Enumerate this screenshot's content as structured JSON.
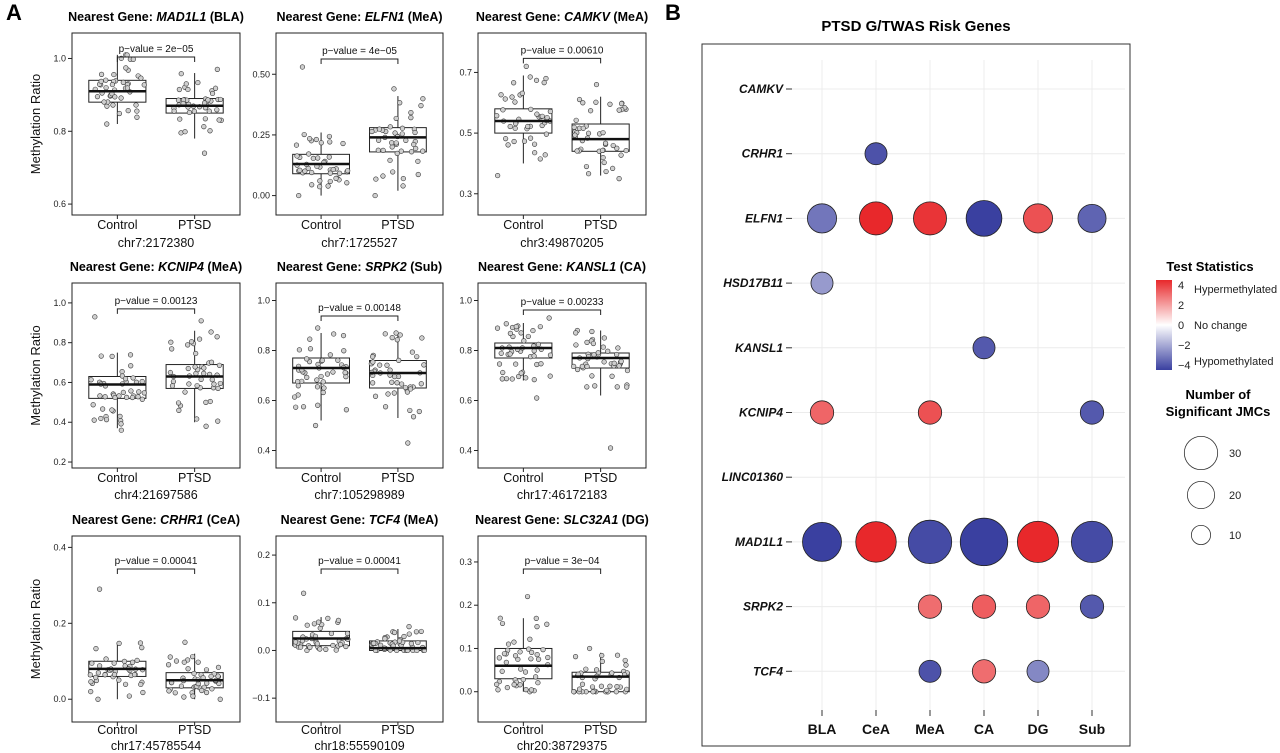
{
  "panel_a_label": "A",
  "panel_b_label": "B",
  "y_axis_label": "Methylation Ratio",
  "title_prefix": "Nearest Gene:",
  "chart_data": [
    {
      "type": "box",
      "gene": "MAD1L1",
      "region": "(BLA)",
      "categories": [
        "Control",
        "PTSD"
      ],
      "xlabel": "chr7:2172380",
      "ylabel": "Methylation Ratio",
      "pvalue": "p−value = 2e−05",
      "ylim": [
        0.57,
        1.07
      ],
      "yticks": [
        0.6,
        0.8,
        1.0
      ],
      "yticklabels": [
        "0.6",
        "0.8",
        "1.0"
      ],
      "boxes": [
        {
          "q1": 0.88,
          "median": 0.91,
          "q3": 0.94,
          "lower": 0.82,
          "upper": 1.01,
          "n": 45,
          "min": 0.82,
          "max": 1.01
        },
        {
          "q1": 0.85,
          "median": 0.87,
          "q3": 0.89,
          "lower": 0.78,
          "upper": 0.96,
          "n": 45,
          "min": 0.74,
          "max": 0.97
        }
      ]
    },
    {
      "type": "box",
      "gene": "ELFN1",
      "region": "(MeA)",
      "categories": [
        "Control",
        "PTSD"
      ],
      "xlabel": "chr7:1725527",
      "ylabel": "",
      "pvalue": "p−value = 4e−05",
      "ylim": [
        -0.08,
        0.67
      ],
      "yticks": [
        0.0,
        0.25,
        0.5
      ],
      "yticklabels": [
        "0.00",
        "0.25",
        "0.50"
      ],
      "boxes": [
        {
          "q1": 0.09,
          "median": 0.13,
          "q3": 0.17,
          "lower": 0.0,
          "upper": 0.26,
          "n": 45,
          "min": 0.0,
          "max": 0.53
        },
        {
          "q1": 0.18,
          "median": 0.24,
          "q3": 0.28,
          "lower": 0.02,
          "upper": 0.41,
          "n": 45,
          "min": 0.0,
          "max": 0.44
        }
      ]
    },
    {
      "type": "box",
      "gene": "CAMKV",
      "region": "(MeA)",
      "categories": [
        "Control",
        "PTSD"
      ],
      "xlabel": "chr3:49870205",
      "ylabel": "",
      "pvalue": "p−value = 0.00610",
      "ylim": [
        0.23,
        0.83
      ],
      "yticks": [
        0.3,
        0.5,
        0.7
      ],
      "yticklabels": [
        "0.3",
        "0.5",
        "0.7"
      ],
      "boxes": [
        {
          "q1": 0.5,
          "median": 0.54,
          "q3": 0.58,
          "lower": 0.4,
          "upper": 0.69,
          "n": 45,
          "min": 0.36,
          "max": 0.72
        },
        {
          "q1": 0.44,
          "median": 0.48,
          "q3": 0.53,
          "lower": 0.36,
          "upper": 0.62,
          "n": 45,
          "min": 0.35,
          "max": 0.66
        }
      ]
    },
    {
      "type": "box",
      "gene": "KCNIP4",
      "region": "(MeA)",
      "categories": [
        "Control",
        "PTSD"
      ],
      "xlabel": "chr4:21697586",
      "ylabel": "Methylation Ratio",
      "pvalue": "p−value = 0.00123",
      "ylim": [
        0.17,
        1.1
      ],
      "yticks": [
        0.2,
        0.4,
        0.6,
        0.8,
        1.0
      ],
      "yticklabels": [
        "0.2",
        "0.4",
        "0.6",
        "0.8",
        "1.0"
      ],
      "boxes": [
        {
          "q1": 0.52,
          "median": 0.59,
          "q3": 0.63,
          "lower": 0.37,
          "upper": 0.75,
          "n": 45,
          "min": 0.36,
          "max": 0.93
        },
        {
          "q1": 0.57,
          "median": 0.63,
          "q3": 0.69,
          "lower": 0.4,
          "upper": 0.86,
          "n": 45,
          "min": 0.38,
          "max": 0.91
        }
      ]
    },
    {
      "type": "box",
      "gene": "SRPK2",
      "region": "(Sub)",
      "categories": [
        "Control",
        "PTSD"
      ],
      "xlabel": "chr7:105298989",
      "ylabel": "",
      "pvalue": "p−value = 0.00148",
      "ylim": [
        0.33,
        1.07
      ],
      "yticks": [
        0.4,
        0.6,
        0.8,
        1.0
      ],
      "yticklabels": [
        "0.4",
        "0.6",
        "0.8",
        "1.0"
      ],
      "boxes": [
        {
          "q1": 0.67,
          "median": 0.73,
          "q3": 0.77,
          "lower": 0.52,
          "upper": 0.87,
          "n": 45,
          "min": 0.5,
          "max": 0.89
        },
        {
          "q1": 0.65,
          "median": 0.71,
          "q3": 0.76,
          "lower": 0.53,
          "upper": 0.87,
          "n": 45,
          "min": 0.43,
          "max": 0.87
        }
      ]
    },
    {
      "type": "box",
      "gene": "KANSL1",
      "region": "(CA)",
      "categories": [
        "Control",
        "PTSD"
      ],
      "xlabel": "chr17:46172183",
      "ylabel": "",
      "pvalue": "p−value = 0.00233",
      "ylim": [
        0.33,
        1.07
      ],
      "yticks": [
        0.4,
        0.6,
        0.8,
        1.0
      ],
      "yticklabels": [
        "0.4",
        "0.6",
        "0.8",
        "1.0"
      ],
      "boxes": [
        {
          "q1": 0.77,
          "median": 0.81,
          "q3": 0.83,
          "lower": 0.68,
          "upper": 0.91,
          "n": 45,
          "min": 0.61,
          "max": 0.93
        },
        {
          "q1": 0.73,
          "median": 0.77,
          "q3": 0.79,
          "lower": 0.62,
          "upper": 0.88,
          "n": 45,
          "min": 0.41,
          "max": 0.88
        }
      ]
    },
    {
      "type": "box",
      "gene": "CRHR1",
      "region": "(CeA)",
      "categories": [
        "Control",
        "PTSD"
      ],
      "xlabel": "chr17:45785544",
      "ylabel": "Methylation Ratio",
      "pvalue": "p−value = 0.00041",
      "ylim": [
        -0.06,
        0.43
      ],
      "yticks": [
        0.0,
        0.2,
        0.4
      ],
      "yticklabels": [
        "0.0",
        "0.2",
        "0.4"
      ],
      "boxes": [
        {
          "q1": 0.06,
          "median": 0.08,
          "q3": 0.1,
          "lower": 0.0,
          "upper": 0.15,
          "n": 45,
          "min": 0.0,
          "max": 0.29
        },
        {
          "q1": 0.03,
          "median": 0.05,
          "q3": 0.07,
          "lower": 0.0,
          "upper": 0.12,
          "n": 45,
          "min": 0.0,
          "max": 0.15
        }
      ]
    },
    {
      "type": "box",
      "gene": "TCF4",
      "region": "(MeA)",
      "categories": [
        "Control",
        "PTSD"
      ],
      "xlabel": "chr18:55590109",
      "ylabel": "",
      "pvalue": "p−value = 0.00041",
      "ylim": [
        -0.15,
        0.24
      ],
      "yticks": [
        -0.1,
        0.0,
        0.1,
        0.2
      ],
      "yticklabels": [
        "−0.1",
        "0.0",
        "0.1",
        "0.2"
      ],
      "boxes": [
        {
          "q1": 0.01,
          "median": 0.025,
          "q3": 0.04,
          "lower": 0.0,
          "upper": 0.07,
          "n": 45,
          "min": 0.0,
          "max": 0.12
        },
        {
          "q1": 0.0,
          "median": 0.005,
          "q3": 0.02,
          "lower": 0.0,
          "upper": 0.045,
          "n": 45,
          "min": 0.0,
          "max": 0.05
        }
      ]
    },
    {
      "type": "box",
      "gene": "SLC32A1",
      "region": "(DG)",
      "categories": [
        "Control",
        "PTSD"
      ],
      "xlabel": "chr20:38729375",
      "ylabel": "",
      "pvalue": "p−value = 3e−04",
      "ylim": [
        -0.07,
        0.36
      ],
      "yticks": [
        0.0,
        0.1,
        0.2,
        0.3
      ],
      "yticklabels": [
        "0.0",
        "0.1",
        "0.2",
        "0.3"
      ],
      "boxes": [
        {
          "q1": 0.03,
          "median": 0.06,
          "q3": 0.1,
          "lower": 0.0,
          "upper": 0.17,
          "n": 45,
          "min": 0.0,
          "max": 0.22
        },
        {
          "q1": 0.0,
          "median": 0.035,
          "q3": 0.045,
          "lower": 0.0,
          "upper": 0.09,
          "n": 45,
          "min": 0.0,
          "max": 0.1
        }
      ]
    },
    {
      "type": "scatter",
      "subtype": "bubble",
      "title": "PTSD G/TWAS Risk Genes",
      "categories": [
        "BLA",
        "CeA",
        "MeA",
        "CA",
        "DG",
        "Sub"
      ],
      "genes": [
        "CAMKV",
        "CRHR1",
        "ELFN1",
        "HSD17B11",
        "KANSL1",
        "KCNIP4",
        "LINC01360",
        "MAD1L1",
        "SRPK2",
        "TCF4"
      ],
      "points": [
        {
          "gene": "CRHR1",
          "region": "CeA",
          "stat": -4,
          "n": 8
        },
        {
          "gene": "ELFN1",
          "region": "BLA",
          "stat": -3,
          "n": 14
        },
        {
          "gene": "ELFN1",
          "region": "CeA",
          "stat": 4.5,
          "n": 18
        },
        {
          "gene": "ELFN1",
          "region": "MeA",
          "stat": 4.2,
          "n": 18
        },
        {
          "gene": "ELFN1",
          "region": "CA",
          "stat": -4.5,
          "n": 21
        },
        {
          "gene": "ELFN1",
          "region": "DG",
          "stat": 3.5,
          "n": 14
        },
        {
          "gene": "ELFN1",
          "region": "Sub",
          "stat": -3.5,
          "n": 13
        },
        {
          "gene": "HSD17B11",
          "region": "BLA",
          "stat": -2,
          "n": 8
        },
        {
          "gene": "KANSL1",
          "region": "CA",
          "stat": -3.8,
          "n": 8
        },
        {
          "gene": "KCNIP4",
          "region": "BLA",
          "stat": 3,
          "n": 9
        },
        {
          "gene": "KCNIP4",
          "region": "MeA",
          "stat": 3.5,
          "n": 9
        },
        {
          "gene": "KCNIP4",
          "region": "Sub",
          "stat": -3.8,
          "n": 9
        },
        {
          "gene": "MAD1L1",
          "region": "BLA",
          "stat": -5,
          "n": 25
        },
        {
          "gene": "MAD1L1",
          "region": "CeA",
          "stat": 4.5,
          "n": 27
        },
        {
          "gene": "MAD1L1",
          "region": "MeA",
          "stat": -4.2,
          "n": 31
        },
        {
          "gene": "MAD1L1",
          "region": "CA",
          "stat": -4.5,
          "n": 37
        },
        {
          "gene": "MAD1L1",
          "region": "DG",
          "stat": 4.8,
          "n": 28
        },
        {
          "gene": "MAD1L1",
          "region": "Sub",
          "stat": -4.2,
          "n": 28
        },
        {
          "gene": "SRPK2",
          "region": "MeA",
          "stat": 2.8,
          "n": 9
        },
        {
          "gene": "SRPK2",
          "region": "CA",
          "stat": 3.2,
          "n": 9
        },
        {
          "gene": "SRPK2",
          "region": "DG",
          "stat": 3,
          "n": 9
        },
        {
          "gene": "SRPK2",
          "region": "Sub",
          "stat": -3.8,
          "n": 9
        },
        {
          "gene": "TCF4",
          "region": "MeA",
          "stat": -4,
          "n": 8
        },
        {
          "gene": "TCF4",
          "region": "CA",
          "stat": 2.8,
          "n": 9
        },
        {
          "gene": "TCF4",
          "region": "DG",
          "stat": -2.5,
          "n": 8
        }
      ],
      "color_legend": {
        "title": "Test Statistics",
        "ticks": [
          4,
          2,
          0,
          -2,
          -4
        ],
        "tick_labels": [
          "4",
          "2",
          "0",
          "−2",
          "−4"
        ],
        "labels": [
          "Hypermethylated",
          "No change",
          "Hypomethylated"
        ],
        "colors": {
          "high": "#e8282b",
          "mid": "#ffffff",
          "low": "#3a40a0"
        }
      },
      "size_legend": {
        "title_line1": "Number of",
        "title_line2": "Significant JMCs",
        "values": [
          30,
          20,
          10
        ],
        "labels": [
          "30",
          "20",
          "10"
        ]
      }
    }
  ]
}
